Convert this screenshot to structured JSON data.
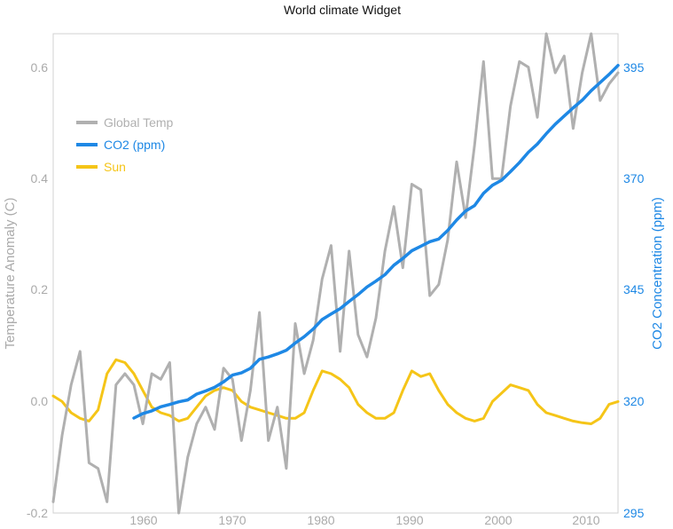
{
  "chart_data": {
    "type": "line",
    "title": "World climate Widget",
    "ylabel_left": "Temperature Anomaly (C)",
    "ylabel_right": "CO2 Concentration (ppm)",
    "xlim": [
      1950,
      2013
    ],
    "ylim_left": [
      -0.2,
      0.66
    ],
    "ylim_right": [
      295,
      401
    ],
    "x_ticks": [
      "1960",
      "1970",
      "1980",
      "1990",
      "2000",
      "2010"
    ],
    "y_left_ticks": [
      "-0.2",
      "0.0",
      "0.2",
      "0.4",
      "0.6"
    ],
    "y_right_ticks": [
      "295",
      "320",
      "345",
      "370",
      "395"
    ],
    "grid": false,
    "legend_position": "upper-left",
    "colors": {
      "temp": "#b0b0b0",
      "co2": "#1e88e5",
      "sun": "#f5c518"
    },
    "series": [
      {
        "name": "Global Temp",
        "axis": "left",
        "x": [
          1950,
          1951,
          1952,
          1953,
          1954,
          1955,
          1956,
          1957,
          1958,
          1959,
          1960,
          1961,
          1962,
          1963,
          1964,
          1965,
          1966,
          1967,
          1968,
          1969,
          1970,
          1971,
          1972,
          1973,
          1974,
          1975,
          1976,
          1977,
          1978,
          1979,
          1980,
          1981,
          1982,
          1983,
          1984,
          1985,
          1986,
          1987,
          1988,
          1989,
          1990,
          1991,
          1992,
          1993,
          1994,
          1995,
          1996,
          1997,
          1998,
          1999,
          2000,
          2001,
          2002,
          2003,
          2004,
          2005,
          2006,
          2007,
          2008,
          2009,
          2010,
          2011,
          2012,
          2013
        ],
        "y": [
          -0.18,
          -0.06,
          0.03,
          0.09,
          -0.11,
          -0.12,
          -0.18,
          0.03,
          0.05,
          0.03,
          -0.04,
          0.05,
          0.04,
          0.07,
          -0.2,
          -0.1,
          -0.04,
          -0.01,
          -0.05,
          0.06,
          0.04,
          -0.07,
          0.02,
          0.16,
          -0.07,
          -0.01,
          -0.12,
          0.14,
          0.05,
          0.11,
          0.22,
          0.28,
          0.09,
          0.27,
          0.12,
          0.08,
          0.15,
          0.27,
          0.35,
          0.24,
          0.39,
          0.38,
          0.19,
          0.21,
          0.29,
          0.43,
          0.33,
          0.46,
          0.61,
          0.4,
          0.4,
          0.53,
          0.61,
          0.6,
          0.51,
          0.66,
          0.59,
          0.62,
          0.49,
          0.59,
          0.66,
          0.54,
          0.57,
          0.59
        ]
      },
      {
        "name": "CO2 (ppm)",
        "axis": "right",
        "x": [
          1959,
          1960,
          1961,
          1962,
          1963,
          1964,
          1965,
          1966,
          1967,
          1968,
          1969,
          1970,
          1971,
          1972,
          1973,
          1974,
          1975,
          1976,
          1977,
          1978,
          1979,
          1980,
          1981,
          1982,
          1983,
          1984,
          1985,
          1986,
          1987,
          1988,
          1989,
          1990,
          1991,
          1992,
          1993,
          1994,
          1995,
          1996,
          1997,
          1998,
          1999,
          2000,
          2001,
          2002,
          2003,
          2004,
          2005,
          2006,
          2007,
          2008,
          2009,
          2010,
          2011,
          2012,
          2013
        ],
        "y": [
          316,
          317,
          317.6,
          318.5,
          319,
          319.6,
          320,
          321.3,
          322,
          322.8,
          324,
          325.5,
          326,
          327,
          329,
          329.5,
          330.2,
          331,
          332.6,
          334,
          335.7,
          337.8,
          339,
          340.2,
          341.8,
          343.3,
          345,
          346.3,
          347.7,
          349.8,
          351.3,
          353,
          354,
          355,
          355.6,
          357.5,
          359.8,
          361.8,
          363,
          365.7,
          367.5,
          368.6,
          370.5,
          372.5,
          374.8,
          376.6,
          378.9,
          381,
          382.8,
          384.6,
          386.3,
          388.4,
          390.2,
          392,
          394
        ]
      },
      {
        "name": "Sun",
        "axis": "left",
        "x": [
          1950,
          1951,
          1952,
          1953,
          1954,
          1955,
          1956,
          1957,
          1958,
          1959,
          1960,
          1961,
          1962,
          1963,
          1964,
          1965,
          1966,
          1967,
          1968,
          1969,
          1970,
          1971,
          1972,
          1973,
          1974,
          1975,
          1976,
          1977,
          1978,
          1979,
          1980,
          1981,
          1982,
          1983,
          1984,
          1985,
          1986,
          1987,
          1988,
          1989,
          1990,
          1991,
          1992,
          1993,
          1994,
          1995,
          1996,
          1997,
          1998,
          1999,
          2000,
          2001,
          2002,
          2003,
          2004,
          2005,
          2006,
          2007,
          2008,
          2009,
          2010,
          2011,
          2012,
          2013
        ],
        "y": [
          0.01,
          0.0,
          -0.02,
          -0.03,
          -0.035,
          -0.015,
          0.05,
          0.075,
          0.07,
          0.05,
          0.02,
          -0.01,
          -0.02,
          -0.025,
          -0.035,
          -0.03,
          -0.01,
          0.01,
          0.02,
          0.025,
          0.02,
          0.0,
          -0.01,
          -0.015,
          -0.02,
          -0.025,
          -0.03,
          -0.03,
          -0.02,
          0.02,
          0.055,
          0.05,
          0.04,
          0.025,
          -0.005,
          -0.02,
          -0.03,
          -0.03,
          -0.02,
          0.02,
          0.055,
          0.045,
          0.05,
          0.02,
          -0.005,
          -0.02,
          -0.03,
          -0.035,
          -0.03,
          0.0,
          0.015,
          0.03,
          0.025,
          0.02,
          -0.005,
          -0.02,
          -0.025,
          -0.03,
          -0.035,
          -0.038,
          -0.04,
          -0.03,
          -0.005,
          0.0
        ]
      }
    ]
  }
}
